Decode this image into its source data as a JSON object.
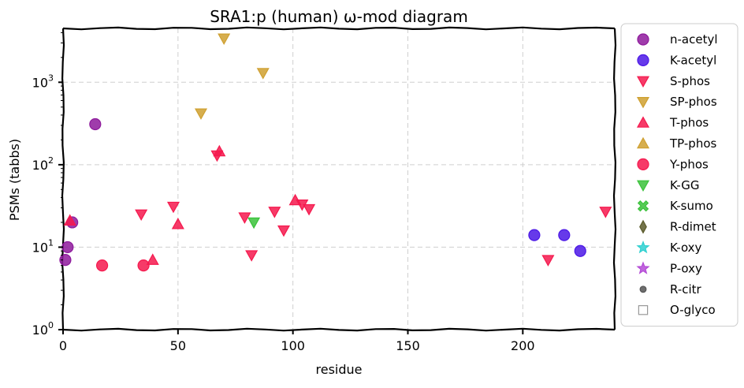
{
  "chart_data": {
    "type": "scatter",
    "title": "SRA1:p (human) ω-mod diagram",
    "xlabel": "residue",
    "ylabel": "PSMs (tabbs)",
    "xlim": [
      0,
      240
    ],
    "ylim": [
      1,
      4500
    ],
    "yscale": "log",
    "grid": true,
    "legend_position": "outside-right",
    "xticks": [
      0,
      50,
      100,
      150,
      200
    ],
    "yticks": [
      {
        "value": 1,
        "base": "10",
        "exp": "0"
      },
      {
        "value": 10,
        "base": "10",
        "exp": "1"
      },
      {
        "value": 100,
        "base": "10",
        "exp": "2"
      },
      {
        "value": 1000,
        "base": "10",
        "exp": "3"
      }
    ],
    "series": [
      {
        "name": "n-acetyl",
        "color": "#8e1a9c",
        "marker": "circle",
        "points": [
          [
            1,
            7
          ],
          [
            2,
            10
          ],
          [
            4,
            20
          ],
          [
            14,
            310
          ]
        ]
      },
      {
        "name": "K-acetyl",
        "color": "#4b17e6",
        "marker": "circle",
        "points": [
          [
            205,
            14
          ],
          [
            218,
            14
          ],
          [
            225,
            9
          ]
        ]
      },
      {
        "name": "S-phos",
        "color": "#f5194e",
        "marker": "triangle-down",
        "points": [
          [
            34,
            25
          ],
          [
            48,
            31
          ],
          [
            67,
            130
          ],
          [
            79,
            23
          ],
          [
            82,
            8
          ],
          [
            92,
            27
          ],
          [
            96,
            16
          ],
          [
            104,
            33
          ],
          [
            107,
            29
          ],
          [
            211,
            7
          ],
          [
            236,
            27
          ]
        ]
      },
      {
        "name": "SP-phos",
        "color": "#cfa030",
        "marker": "triangle-down",
        "points": [
          [
            60,
            420
          ],
          [
            70,
            3400
          ],
          [
            87,
            1300
          ]
        ]
      },
      {
        "name": "T-phos",
        "color": "#f5194e",
        "marker": "triangle-up",
        "points": [
          [
            3,
            21
          ],
          [
            39,
            7
          ],
          [
            50,
            19
          ],
          [
            68,
            145
          ],
          [
            101,
            37
          ]
        ]
      },
      {
        "name": "TP-phos",
        "color": "#cfa030",
        "marker": "triangle-up",
        "points": []
      },
      {
        "name": "Y-phos",
        "color": "#f5194e",
        "marker": "circle",
        "points": [
          [
            17,
            6
          ],
          [
            35,
            6
          ]
        ]
      },
      {
        "name": "K-GG",
        "color": "#3ac23a",
        "marker": "triangle-down",
        "points": [
          [
            83,
            20
          ]
        ]
      },
      {
        "name": "K-sumo",
        "color": "#3ac23a",
        "marker": "x-filled",
        "points": []
      },
      {
        "name": "R-dimet",
        "color": "#5a5a2a",
        "marker": "diamond-thin",
        "points": []
      },
      {
        "name": "K-oxy",
        "color": "#2fd0d0",
        "marker": "star",
        "points": []
      },
      {
        "name": "P-oxy",
        "color": "#b44ad6",
        "marker": "star",
        "points": []
      },
      {
        "name": "R-citr",
        "color": "#555555",
        "marker": "small-circle",
        "points": []
      },
      {
        "name": "O-glyco",
        "color": "#999999",
        "marker": "square-open",
        "points": []
      }
    ]
  }
}
